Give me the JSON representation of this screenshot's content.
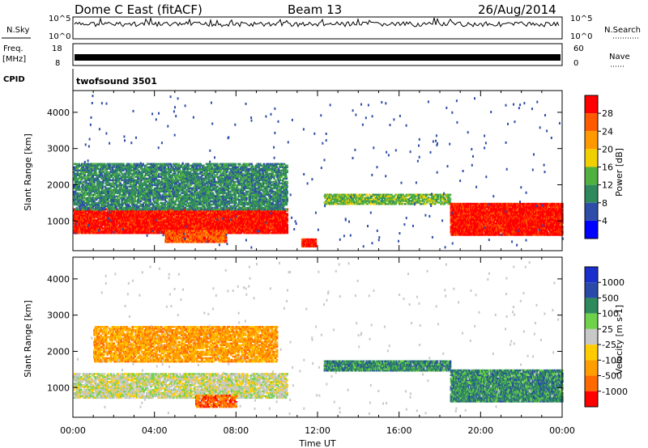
{
  "header": {
    "site": "Dome C East (fitACF)",
    "beam": "Beam 13",
    "date": "26/Aug/2014"
  },
  "strips": {
    "nsky_label": "N.Sky",
    "nsky_ticks": [
      "10^5",
      "10^0"
    ],
    "nsearch_label": "N.Search",
    "nsearch_ticks": [
      "10^5",
      "10^0"
    ],
    "freq_label_1": "Freq.",
    "freq_label_2": "[MHz]",
    "freq_ticks": [
      "18",
      "8"
    ],
    "nave_label": "Nave",
    "nave_ticks": [
      "60",
      "0"
    ],
    "cpid_label": "CPID",
    "cpid_value": "twofsound 3501"
  },
  "colors": {
    "power": [
      "#0000ff",
      "#2e4da8",
      "#2e8a5c",
      "#50b040",
      "#f0d000",
      "#ff9900",
      "#ff5a00",
      "#ff0000"
    ],
    "velocity": [
      "#ff0000",
      "#ff6a00",
      "#ff9e00",
      "#ffcc00",
      "#c8c8c8",
      "#6fd24a",
      "#2e8a5c",
      "#2a4aaa",
      "#1a30cc"
    ]
  },
  "chart_data": [
    {
      "type": "heatmap",
      "name": "power",
      "xlabel": "",
      "ylabel": "Slant Range [km]",
      "yticks": [
        "1000",
        "2000",
        "3000",
        "4000"
      ],
      "ylim": [
        180,
        4600
      ],
      "xlim": [
        0,
        24
      ],
      "colorbar_label": "Power [dB]",
      "colorbar_ticks": [
        "4",
        "8",
        "12",
        "16",
        "20",
        "24",
        "28"
      ],
      "bands": [
        {
          "t": [
            0,
            10.5
          ],
          "r": [
            650,
            1350
          ],
          "level": 7
        },
        {
          "t": [
            0,
            10.5
          ],
          "r": [
            1300,
            2600
          ],
          "level": 2
        },
        {
          "t": [
            4.5,
            7.5
          ],
          "r": [
            400,
            750
          ],
          "level": 6
        },
        {
          "t": [
            11.2,
            11.9
          ],
          "r": [
            280,
            520
          ],
          "level": 7
        },
        {
          "t": [
            12.3,
            18.5
          ],
          "r": [
            1450,
            1750
          ],
          "level": 3
        },
        {
          "t": [
            18.5,
            24
          ],
          "r": [
            600,
            1500
          ],
          "level": 7
        }
      ]
    },
    {
      "type": "heatmap",
      "name": "velocity",
      "xlabel": "Time UT",
      "ylabel": "Slant Range [km]",
      "xticks": [
        "00:00",
        "04:00",
        "08:00",
        "12:00",
        "16:00",
        "20:00",
        "00:00"
      ],
      "yticks": [
        "1000",
        "2000",
        "3000",
        "4000"
      ],
      "ylim": [
        180,
        4600
      ],
      "xlim": [
        0,
        24
      ],
      "colorbar_label": "Velocity [m s-1]",
      "colorbar_ticks": [
        "1000",
        "500",
        "100",
        "25",
        "-25",
        "-100",
        "-500",
        "-1000"
      ],
      "bands": [
        {
          "t": [
            0,
            10.5
          ],
          "r": [
            700,
            1400
          ],
          "level": 4
        },
        {
          "t": [
            1,
            10
          ],
          "r": [
            1700,
            2700
          ],
          "level": 2
        },
        {
          "t": [
            6,
            8
          ],
          "r": [
            450,
            800
          ],
          "level": 1
        },
        {
          "t": [
            12.3,
            18.5
          ],
          "r": [
            1450,
            1750
          ],
          "level": 6
        },
        {
          "t": [
            18.5,
            24
          ],
          "r": [
            600,
            1500
          ],
          "level": 6
        }
      ]
    }
  ]
}
